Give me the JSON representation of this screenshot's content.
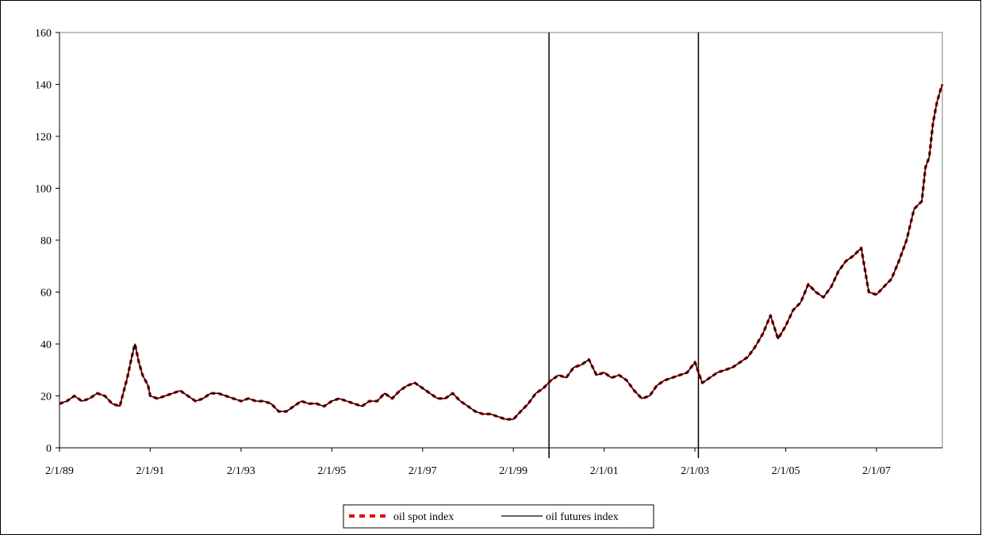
{
  "chart_data": {
    "type": "line",
    "title": "",
    "xlabel": "",
    "ylabel": "",
    "x_tick_labels": [
      "2/1/89",
      "2/1/91",
      "2/1/93",
      "2/1/95",
      "2/1/97",
      "2/1/99",
      "2/1/01",
      "2/1/03",
      "2/1/05",
      "2/1/07"
    ],
    "x_ticks": [
      "1989-02-01",
      "1991-02-01",
      "1993-02-01",
      "1995-02-01",
      "1997-02-01",
      "1999-02-01",
      "2001-02-01",
      "2003-02-01",
      "2005-02-01",
      "2007-02-01"
    ],
    "xlim": [
      "1989-02-01",
      "2008-07-15"
    ],
    "ylim": [
      0,
      160
    ],
    "y_ticks": [
      0,
      20,
      40,
      60,
      80,
      100,
      120,
      140,
      160
    ],
    "grid": false,
    "legend_position": "bottom-center",
    "vertical_lines": [
      "1999-11-15",
      "2003-03-01"
    ],
    "colors": {
      "spot": "#e00000",
      "futures": "#000000"
    },
    "x": [
      "1989-02-01",
      "1989-04-01",
      "1989-06-01",
      "1989-08-01",
      "1989-10-01",
      "1989-12-01",
      "1990-02-01",
      "1990-04-01",
      "1990-06-01",
      "1990-08-01",
      "1990-09-01",
      "1990-10-01",
      "1990-11-01",
      "1990-12-01",
      "1991-01-15",
      "1991-02-01",
      "1991-04-01",
      "1991-06-01",
      "1991-08-01",
      "1991-10-01",
      "1991-12-01",
      "1992-02-01",
      "1992-04-01",
      "1992-06-01",
      "1992-08-01",
      "1992-10-01",
      "1992-12-01",
      "1993-02-01",
      "1993-04-01",
      "1993-06-01",
      "1993-08-01",
      "1993-10-01",
      "1993-12-01",
      "1994-02-01",
      "1994-04-01",
      "1994-06-01",
      "1994-08-01",
      "1994-10-01",
      "1994-12-01",
      "1995-02-01",
      "1995-04-01",
      "1995-06-01",
      "1995-08-01",
      "1995-10-01",
      "1995-12-01",
      "1996-02-01",
      "1996-04-01",
      "1996-06-01",
      "1996-08-01",
      "1996-10-01",
      "1996-12-01",
      "1997-02-01",
      "1997-04-01",
      "1997-06-01",
      "1997-08-01",
      "1997-10-01",
      "1997-12-01",
      "1998-02-01",
      "1998-04-01",
      "1998-06-01",
      "1998-08-01",
      "1998-10-01",
      "1998-12-01",
      "1999-02-01",
      "1999-04-01",
      "1999-06-01",
      "1999-08-01",
      "1999-10-01",
      "1999-12-01",
      "2000-02-01",
      "2000-04-01",
      "2000-06-01",
      "2000-08-01",
      "2000-10-01",
      "2000-12-01",
      "2001-02-01",
      "2001-04-01",
      "2001-06-01",
      "2001-08-01",
      "2001-10-01",
      "2001-12-01",
      "2002-02-01",
      "2002-04-01",
      "2002-06-01",
      "2002-08-01",
      "2002-10-01",
      "2002-12-01",
      "2003-02-01",
      "2003-04-01",
      "2003-06-01",
      "2003-08-01",
      "2003-10-01",
      "2003-12-01",
      "2004-02-01",
      "2004-04-01",
      "2004-06-01",
      "2004-08-01",
      "2004-10-01",
      "2004-12-01",
      "2005-02-01",
      "2005-04-01",
      "2005-06-01",
      "2005-08-01",
      "2005-10-01",
      "2005-12-01",
      "2006-02-01",
      "2006-04-01",
      "2006-06-01",
      "2006-08-01",
      "2006-10-01",
      "2006-12-01",
      "2007-02-01",
      "2007-04-01",
      "2007-06-01",
      "2007-08-01",
      "2007-10-01",
      "2007-12-01",
      "2008-02-01",
      "2008-03-01",
      "2008-04-01",
      "2008-05-01",
      "2008-06-01",
      "2008-07-01",
      "2008-07-15"
    ],
    "series": [
      {
        "name": "oil spot index",
        "values": [
          17,
          18,
          20,
          18,
          19,
          21,
          20,
          17,
          16,
          27,
          34,
          40,
          33,
          28,
          24,
          20,
          19,
          20,
          21,
          22,
          20,
          18,
          19,
          21,
          21,
          20,
          19,
          18,
          19,
          18,
          18,
          17,
          14,
          14,
          16,
          18,
          17,
          17,
          16,
          18,
          19,
          18,
          17,
          16,
          18,
          18,
          21,
          19,
          22,
          24,
          25,
          23,
          21,
          19,
          19,
          21,
          18,
          16,
          14,
          13,
          13,
          12,
          11,
          11,
          14,
          17,
          21,
          23,
          26,
          28,
          27,
          31,
          32,
          34,
          28,
          29,
          27,
          28,
          26,
          22,
          19,
          20,
          24,
          26,
          27,
          28,
          29,
          33,
          25,
          27,
          29,
          30,
          31,
          33,
          35,
          39,
          44,
          51,
          42,
          47,
          53,
          56,
          63,
          60,
          58,
          62,
          68,
          72,
          74,
          77,
          60,
          59,
          62,
          65,
          72,
          80,
          92,
          95,
          108,
          112,
          125,
          133,
          138,
          140
        ]
      },
      {
        "name": "oil futures index",
        "values": [
          17,
          18,
          20,
          18,
          19,
          21,
          20,
          17,
          16,
          27,
          34,
          40,
          33,
          28,
          24,
          20,
          19,
          20,
          21,
          22,
          20,
          18,
          19,
          21,
          21,
          20,
          19,
          18,
          19,
          18,
          18,
          17,
          14,
          14,
          16,
          18,
          17,
          17,
          16,
          18,
          19,
          18,
          17,
          16,
          18,
          18,
          21,
          19,
          22,
          24,
          25,
          23,
          21,
          19,
          19,
          21,
          18,
          16,
          14,
          13,
          13,
          12,
          11,
          11,
          14,
          17,
          21,
          23,
          26,
          28,
          27,
          31,
          32,
          34,
          28,
          29,
          27,
          28,
          26,
          22,
          19,
          20,
          24,
          26,
          27,
          28,
          29,
          33,
          25,
          27,
          29,
          30,
          31,
          33,
          35,
          39,
          44,
          51,
          42,
          47,
          53,
          56,
          63,
          60,
          58,
          62,
          68,
          72,
          74,
          77,
          60,
          59,
          62,
          65,
          72,
          80,
          92,
          95,
          108,
          112,
          125,
          133,
          138,
          140
        ]
      }
    ]
  }
}
